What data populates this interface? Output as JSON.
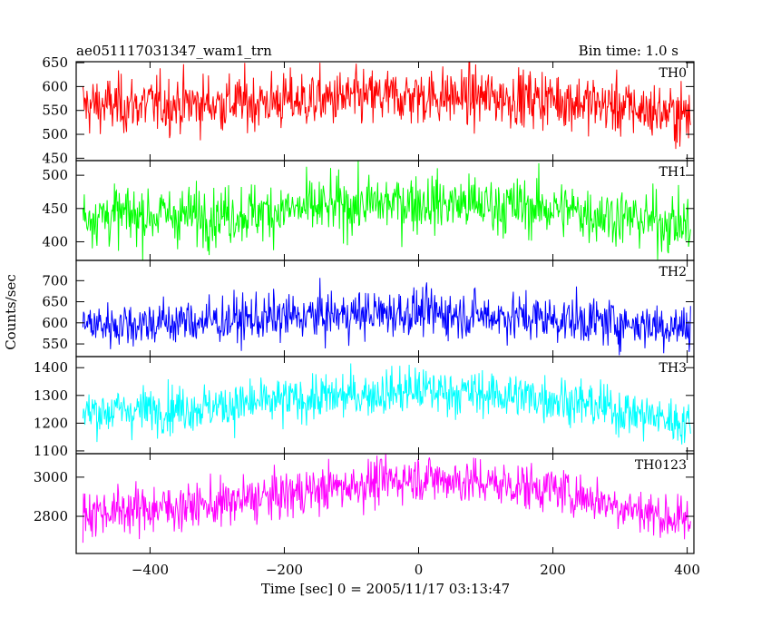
{
  "header": {
    "left": "ae051117031347_wam1_trn",
    "right": "Bin time: 1.0 s"
  },
  "chart_data": {
    "type": "line",
    "xlabel": "Time [sec] 0 = 2005/11/17 03:13:47",
    "ylabel": "Counts/sec",
    "xlim": [
      -510,
      410
    ],
    "xticks": [
      -400,
      -200,
      0,
      200,
      400
    ],
    "xtick_labels": [
      "−400",
      "−200",
      "0",
      "200",
      "400"
    ],
    "x_range": [
      -500,
      405
    ],
    "bin_time_s": 1.0,
    "grid": false,
    "panels": [
      {
        "label": "TH0",
        "color": "#ff0000",
        "ylim": [
          445,
          652
        ],
        "yticks": [
          450,
          500,
          550,
          600,
          650
        ],
        "trend": [
          [
            -500,
            560
          ],
          [
            -300,
            565
          ],
          [
            -100,
            575
          ],
          [
            0,
            580
          ],
          [
            200,
            575
          ],
          [
            400,
            540
          ]
        ],
        "noise_sd": 30
      },
      {
        "label": "TH1",
        "color": "#00ff00",
        "ylim": [
          372,
          522
        ],
        "yticks": [
          400,
          450,
          500
        ],
        "trend": [
          [
            -500,
            440
          ],
          [
            -300,
            440
          ],
          [
            -100,
            455
          ],
          [
            0,
            460
          ],
          [
            200,
            450
          ],
          [
            400,
            425
          ]
        ],
        "noise_sd": 22
      },
      {
        "label": "TH2",
        "color": "#0000ff",
        "ylim": [
          520,
          748
        ],
        "yticks": [
          550,
          600,
          650,
          700
        ],
        "trend": [
          [
            -500,
            595
          ],
          [
            -300,
            605
          ],
          [
            -100,
            620
          ],
          [
            0,
            625
          ],
          [
            200,
            610
          ],
          [
            400,
            590
          ]
        ],
        "noise_sd": 28
      },
      {
        "label": "TH3",
        "color": "#00ffff",
        "ylim": [
          1090,
          1440
        ],
        "yticks": [
          1100,
          1200,
          1300,
          1400
        ],
        "trend": [
          [
            -500,
            1240
          ],
          [
            -300,
            1260
          ],
          [
            -100,
            1300
          ],
          [
            0,
            1320
          ],
          [
            200,
            1290
          ],
          [
            400,
            1200
          ]
        ],
        "noise_sd": 42
      },
      {
        "label": "TH0123",
        "color": "#ff00ff",
        "ylim": [
          2610,
          3120
        ],
        "yticks": [
          2800,
          3000
        ],
        "trend": [
          [
            -500,
            2820
          ],
          [
            -300,
            2860
          ],
          [
            -100,
            2960
          ],
          [
            0,
            3000
          ],
          [
            200,
            2940
          ],
          [
            400,
            2770
          ]
        ],
        "noise_sd": 60
      }
    ]
  }
}
